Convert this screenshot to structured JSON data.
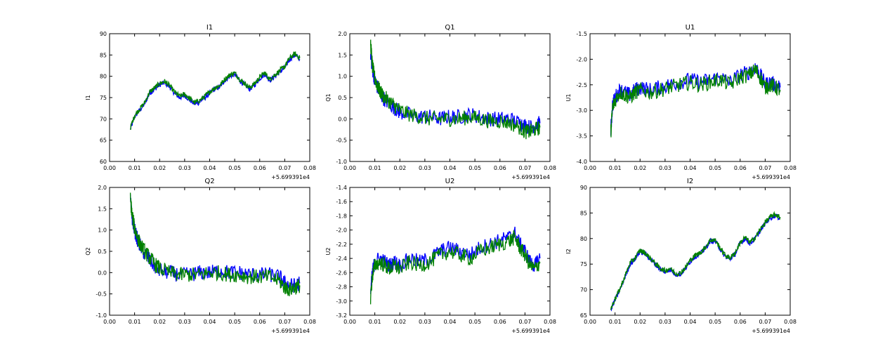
{
  "chart_data": [
    {
      "type": "line",
      "title": "I1",
      "ylabel": "I1",
      "xlim": [
        0.0,
        0.08
      ],
      "ylim": [
        60,
        90
      ],
      "x_offset_label": "+5.699391e4",
      "x_ticks": [
        "0.00",
        "0.01",
        "0.02",
        "0.03",
        "0.04",
        "0.05",
        "0.06",
        "0.07",
        "0.08"
      ],
      "y_ticks": [
        "60",
        "65",
        "70",
        "75",
        "80",
        "85",
        "90"
      ],
      "colors": [
        "#0000ff",
        "#008000"
      ],
      "x": [
        0.0083,
        0.01,
        0.012,
        0.014,
        0.016,
        0.018,
        0.02,
        0.022,
        0.024,
        0.026,
        0.028,
        0.03,
        0.032,
        0.034,
        0.036,
        0.038,
        0.04,
        0.042,
        0.044,
        0.046,
        0.048,
        0.05,
        0.052,
        0.054,
        0.056,
        0.058,
        0.06,
        0.062,
        0.064,
        0.066,
        0.068,
        0.07,
        0.072,
        0.074,
        0.076
      ],
      "series": [
        {
          "values": [
            67.5,
            70.5,
            72,
            73.5,
            76,
            77,
            78,
            78.5,
            77.5,
            76,
            75,
            75.5,
            74.5,
            73.5,
            74,
            75,
            76,
            77,
            77.5,
            79,
            80,
            80.5,
            79,
            78,
            77,
            78,
            79.5,
            80.5,
            79,
            80,
            81,
            82,
            84,
            85,
            84
          ]
        },
        {
          "values": [
            67.8,
            70.8,
            72.3,
            73.8,
            76.3,
            77.3,
            78.3,
            78.8,
            77.8,
            76.3,
            75.3,
            75.8,
            74.8,
            73.8,
            74.3,
            75.3,
            76.3,
            77.3,
            77.8,
            79.3,
            80.3,
            80.8,
            79.3,
            78.3,
            77.3,
            78.3,
            79.8,
            80.8,
            79.3,
            80.3,
            81.3,
            82.3,
            84.3,
            85.3,
            84.3
          ]
        }
      ]
    },
    {
      "type": "line",
      "title": "Q1",
      "ylabel": "Q1",
      "xlim": [
        0.0,
        0.08
      ],
      "ylim": [
        -1.0,
        2.0
      ],
      "x_offset_label": "+5.699391e4",
      "x_ticks": [
        "0.00",
        "0.01",
        "0.02",
        "0.03",
        "0.04",
        "0.05",
        "0.06",
        "0.07",
        "0.08"
      ],
      "y_ticks": [
        "-1.0",
        "-0.5",
        "0.0",
        "0.5",
        "1.0",
        "1.5",
        "2.0"
      ],
      "colors": [
        "#0000ff",
        "#008000"
      ],
      "x": [
        0.0083,
        0.009,
        0.01,
        0.011,
        0.012,
        0.014,
        0.016,
        0.018,
        0.02,
        0.024,
        0.028,
        0.032,
        0.036,
        0.04,
        0.044,
        0.048,
        0.052,
        0.056,
        0.06,
        0.064,
        0.068,
        0.07,
        0.072,
        0.074,
        0.076
      ],
      "series": [
        {
          "values": [
            1.5,
            1.2,
            0.9,
            0.75,
            0.6,
            0.45,
            0.35,
            0.25,
            0.15,
            0.1,
            0.05,
            0.05,
            0.0,
            0.05,
            0.05,
            0.1,
            0.05,
            0.0,
            0.0,
            0.0,
            -0.1,
            -0.15,
            -0.2,
            -0.15,
            -0.1
          ]
        },
        {
          "values": [
            1.8,
            1.25,
            0.95,
            0.8,
            0.65,
            0.5,
            0.4,
            0.3,
            0.2,
            0.1,
            0.05,
            0.0,
            0.0,
            0.0,
            0.0,
            0.05,
            0.0,
            -0.05,
            -0.05,
            -0.1,
            -0.2,
            -0.3,
            -0.3,
            -0.25,
            -0.2
          ]
        }
      ]
    },
    {
      "type": "line",
      "title": "U1",
      "ylabel": "U1",
      "xlim": [
        0.0,
        0.08
      ],
      "ylim": [
        -4.0,
        -1.5
      ],
      "x_offset_label": "+5.699391e4",
      "x_ticks": [
        "0.00",
        "0.01",
        "0.02",
        "0.03",
        "0.04",
        "0.05",
        "0.06",
        "0.07",
        "0.08"
      ],
      "y_ticks": [
        "-4.0",
        "-3.5",
        "-3.0",
        "-2.5",
        "-2.0",
        "-1.5"
      ],
      "colors": [
        "#0000ff",
        "#008000"
      ],
      "x": [
        0.0083,
        0.009,
        0.01,
        0.012,
        0.014,
        0.016,
        0.018,
        0.02,
        0.024,
        0.028,
        0.032,
        0.036,
        0.04,
        0.044,
        0.048,
        0.052,
        0.056,
        0.06,
        0.064,
        0.066,
        0.068,
        0.07,
        0.072,
        0.074,
        0.076
      ],
      "series": [
        {
          "values": [
            -3.4,
            -2.9,
            -2.75,
            -2.6,
            -2.65,
            -2.7,
            -2.6,
            -2.55,
            -2.6,
            -2.55,
            -2.5,
            -2.45,
            -2.4,
            -2.45,
            -2.4,
            -2.35,
            -2.45,
            -2.3,
            -2.25,
            -2.15,
            -2.3,
            -2.5,
            -2.45,
            -2.5,
            -2.55
          ]
        },
        {
          "values": [
            -3.45,
            -2.95,
            -2.8,
            -2.65,
            -2.7,
            -2.75,
            -2.65,
            -2.6,
            -2.65,
            -2.6,
            -2.55,
            -2.5,
            -2.45,
            -2.5,
            -2.45,
            -2.4,
            -2.5,
            -2.35,
            -2.3,
            -2.2,
            -2.35,
            -2.55,
            -2.5,
            -2.55,
            -2.6
          ]
        }
      ]
    },
    {
      "type": "line",
      "title": "Q2",
      "ylabel": "Q2",
      "xlim": [
        0.0,
        0.08
      ],
      "ylim": [
        -1.0,
        2.0
      ],
      "x_offset_label": "+5.699391e4",
      "x_ticks": [
        "0.00",
        "0.01",
        "0.02",
        "0.03",
        "0.04",
        "0.05",
        "0.06",
        "0.07",
        "0.08"
      ],
      "y_ticks": [
        "-1.0",
        "-0.5",
        "0.0",
        "0.5",
        "1.0",
        "1.5",
        "2.0"
      ],
      "colors": [
        "#0000ff",
        "#008000"
      ],
      "x": [
        0.0083,
        0.009,
        0.01,
        0.011,
        0.012,
        0.014,
        0.016,
        0.018,
        0.02,
        0.024,
        0.028,
        0.032,
        0.036,
        0.04,
        0.044,
        0.048,
        0.052,
        0.056,
        0.06,
        0.064,
        0.068,
        0.07,
        0.072,
        0.074,
        0.076
      ],
      "series": [
        {
          "values": [
            1.7,
            1.3,
            1.0,
            0.8,
            0.65,
            0.45,
            0.3,
            0.15,
            0.05,
            0.0,
            -0.05,
            -0.05,
            0.0,
            0.0,
            0.05,
            0.0,
            0.0,
            -0.05,
            -0.05,
            -0.05,
            -0.1,
            -0.25,
            -0.3,
            -0.3,
            -0.25
          ]
        },
        {
          "values": [
            1.75,
            1.35,
            1.05,
            0.85,
            0.7,
            0.5,
            0.35,
            0.2,
            0.1,
            0.0,
            -0.05,
            -0.05,
            -0.05,
            0.0,
            0.0,
            -0.05,
            -0.05,
            -0.1,
            -0.1,
            -0.1,
            -0.2,
            -0.35,
            -0.4,
            -0.35,
            -0.3
          ]
        }
      ]
    },
    {
      "type": "line",
      "title": "U2",
      "ylabel": "U2",
      "xlim": [
        0.0,
        0.08
      ],
      "ylim": [
        -3.2,
        -1.4
      ],
      "x_offset_label": "+5.699391e4",
      "x_ticks": [
        "0.00",
        "0.01",
        "0.02",
        "0.03",
        "0.04",
        "0.05",
        "0.06",
        "0.07",
        "0.08"
      ],
      "y_ticks": [
        "-3.2",
        "-3.0",
        "-2.8",
        "-2.6",
        "-2.4",
        "-2.2",
        "-2.0",
        "-1.8",
        "-1.6",
        "-1.4"
      ],
      "colors": [
        "#0000ff",
        "#008000"
      ],
      "x": [
        0.0083,
        0.009,
        0.01,
        0.012,
        0.014,
        0.016,
        0.018,
        0.02,
        0.024,
        0.028,
        0.032,
        0.036,
        0.04,
        0.044,
        0.048,
        0.052,
        0.056,
        0.06,
        0.064,
        0.066,
        0.068,
        0.07,
        0.072,
        0.074,
        0.076
      ],
      "series": [
        {
          "values": [
            -2.9,
            -2.6,
            -2.45,
            -2.4,
            -2.45,
            -2.5,
            -2.45,
            -2.5,
            -2.4,
            -2.45,
            -2.4,
            -2.3,
            -2.25,
            -2.3,
            -2.35,
            -2.25,
            -2.2,
            -2.15,
            -2.1,
            -2.05,
            -2.2,
            -2.3,
            -2.45,
            -2.5,
            -2.4
          ]
        },
        {
          "values": [
            -2.95,
            -2.65,
            -2.5,
            -2.45,
            -2.5,
            -2.55,
            -2.5,
            -2.55,
            -2.45,
            -2.5,
            -2.45,
            -2.35,
            -2.3,
            -2.35,
            -2.4,
            -2.3,
            -2.25,
            -2.2,
            -2.15,
            -2.1,
            -2.25,
            -2.35,
            -2.5,
            -2.55,
            -2.45
          ]
        }
      ]
    },
    {
      "type": "line",
      "title": "I2",
      "ylabel": "I2",
      "xlim": [
        0.0,
        0.08
      ],
      "ylim": [
        65,
        90
      ],
      "x_offset_label": "+5.699391e4",
      "x_ticks": [
        "0.00",
        "0.01",
        "0.02",
        "0.03",
        "0.04",
        "0.05",
        "0.06",
        "0.07",
        "0.08"
      ],
      "y_ticks": [
        "65",
        "70",
        "75",
        "80",
        "85",
        "90"
      ],
      "colors": [
        "#0000ff",
        "#008000"
      ],
      "x": [
        0.0083,
        0.01,
        0.012,
        0.014,
        0.016,
        0.018,
        0.02,
        0.022,
        0.024,
        0.026,
        0.028,
        0.03,
        0.032,
        0.034,
        0.036,
        0.038,
        0.04,
        0.042,
        0.044,
        0.046,
        0.048,
        0.05,
        0.052,
        0.054,
        0.056,
        0.058,
        0.06,
        0.062,
        0.064,
        0.066,
        0.068,
        0.07,
        0.072,
        0.074,
        0.076
      ],
      "series": [
        {
          "values": [
            66,
            68,
            70,
            72.5,
            75,
            76,
            77.5,
            77,
            76,
            75,
            74,
            73.5,
            74,
            73,
            73,
            74,
            75.5,
            76.5,
            77,
            78,
            79.5,
            79.5,
            78,
            76.5,
            76,
            77,
            79,
            80,
            79,
            80,
            81.5,
            83,
            84,
            84.5,
            84
          ]
        },
        {
          "values": [
            66.2,
            68.2,
            70.2,
            72.7,
            75.2,
            76.2,
            77.7,
            77.2,
            76.2,
            75.2,
            74.2,
            73.7,
            74.2,
            73.2,
            73.2,
            74.2,
            75.7,
            76.7,
            77.2,
            78.2,
            79.7,
            79.7,
            78.2,
            76.7,
            76.2,
            77.2,
            79.2,
            80.2,
            79.2,
            80.2,
            81.7,
            83.2,
            84.2,
            84.7,
            84.2
          ]
        }
      ]
    }
  ]
}
